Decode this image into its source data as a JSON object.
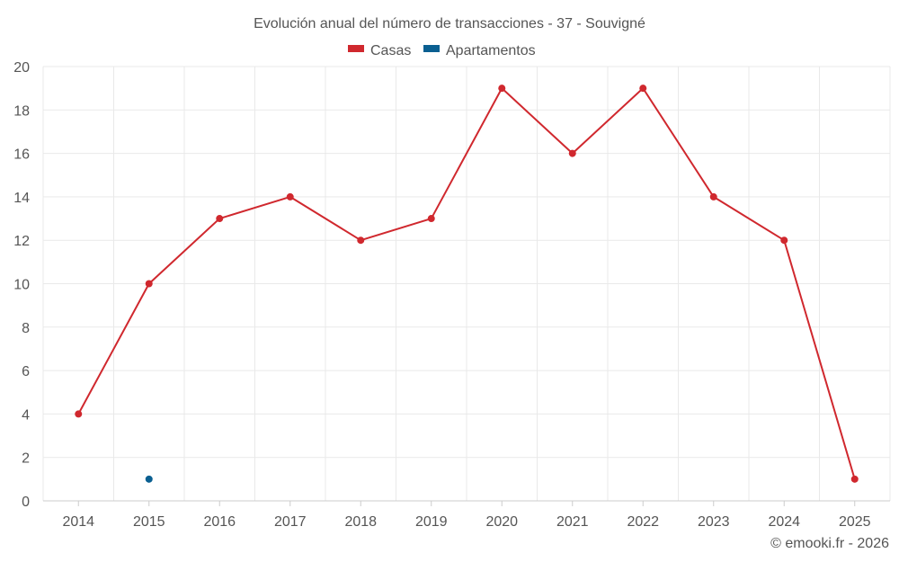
{
  "chart_data": {
    "type": "line",
    "title": "Evolución anual del número de transacciones - 37 - Souvigné",
    "categories": [
      "2014",
      "2015",
      "2016",
      "2017",
      "2018",
      "2019",
      "2020",
      "2021",
      "2022",
      "2023",
      "2024",
      "2025"
    ],
    "series": [
      {
        "name": "Casas",
        "color": "#d0282e",
        "values": [
          4,
          10,
          13,
          14,
          12,
          13,
          19,
          16,
          19,
          14,
          12,
          1
        ]
      },
      {
        "name": "Apartamentos",
        "color": "#0a5f91",
        "values": [
          null,
          1,
          null,
          null,
          null,
          null,
          null,
          null,
          null,
          null,
          null,
          null
        ]
      }
    ],
    "ylim": [
      0,
      20
    ],
    "yticks": [
      0,
      2,
      4,
      6,
      8,
      10,
      12,
      14,
      16,
      18,
      20
    ],
    "xlabel": "",
    "ylabel": "",
    "grid": true,
    "legend": "top-center"
  },
  "credit": "© emooki.fr - 2026"
}
